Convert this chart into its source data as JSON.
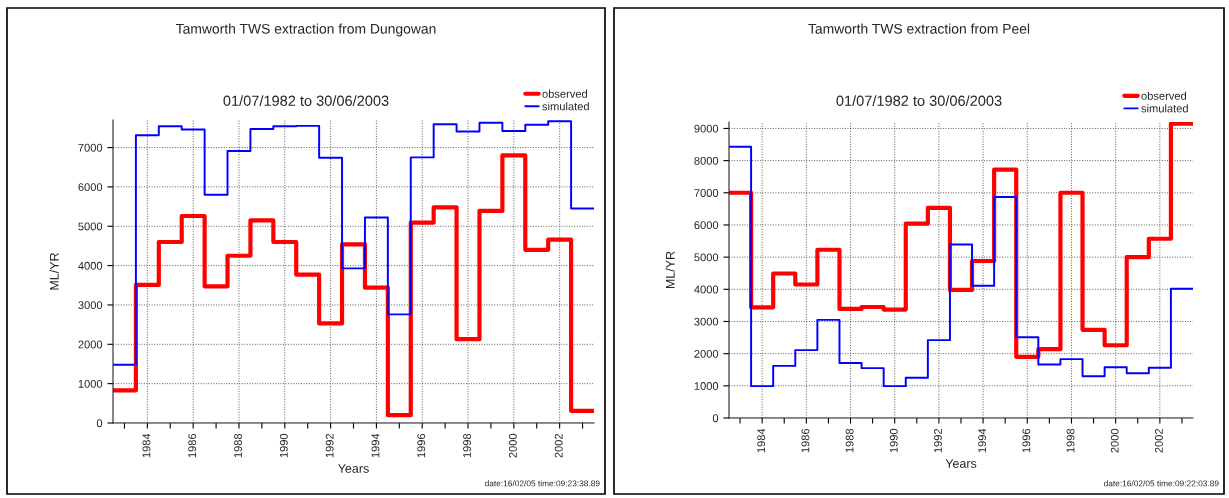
{
  "chart_data": [
    {
      "type": "step",
      "title": "Tamworth TWS extraction from Dungowan",
      "subtitle": "01/07/1982 to 30/06/2003",
      "xlabel": "Years",
      "ylabel": "ML/YR",
      "x": [
        1982.5,
        1983.5,
        1984.5,
        1985.5,
        1986.5,
        1987.5,
        1988.5,
        1989.5,
        1990.5,
        1991.5,
        1992.5,
        1993.5,
        1994.5,
        1995.5,
        1996.5,
        1997.5,
        1998.5,
        1999.5,
        2000.5,
        2001.5,
        2002.5,
        2003.5
      ],
      "series": [
        {
          "name": "observed",
          "color": "#ff0000",
          "values": [
            830,
            3510,
            4600,
            5260,
            3470,
            4250,
            5150,
            4600,
            3770,
            2530,
            4540,
            3440,
            200,
            5090,
            5480,
            2130,
            5390,
            6800,
            4400,
            4660,
            310,
            310
          ]
        },
        {
          "name": "simulated",
          "color": "#0000ff",
          "values": [
            1480,
            7310,
            7540,
            7460,
            5800,
            6910,
            7470,
            7540,
            7550,
            6740,
            3930,
            5220,
            2760,
            6750,
            7590,
            7410,
            7630,
            7420,
            7580,
            7670,
            5450,
            5450
          ]
        }
      ],
      "xlim": [
        1982.5,
        2003.5
      ],
      "xticks": [
        {
          "value": 1983,
          "label": null
        },
        1984,
        {
          "value": 1985,
          "label": null
        },
        1986,
        {
          "value": 1987,
          "label": null
        },
        1988,
        {
          "value": 1989,
          "label": null
        },
        1990,
        {
          "value": 1991,
          "label": null
        },
        1992,
        {
          "value": 1993,
          "label": null
        },
        1994,
        {
          "value": 1995,
          "label": null
        },
        1996,
        {
          "value": 1997,
          "label": null
        },
        1998,
        {
          "value": 1999,
          "label": null
        },
        2000,
        {
          "value": 2001,
          "label": null
        },
        2002,
        {
          "value": 2003,
          "label": null
        }
      ],
      "ylim": [
        0,
        7700
      ],
      "yticks": [
        0,
        1000,
        2000,
        3000,
        4000,
        5000,
        6000,
        7000
      ],
      "grid": true,
      "legend": "top right",
      "annotations": [
        "date:16/02/05 time:09:23:38.89"
      ]
    },
    {
      "type": "step",
      "title": "Tamworth TWS extraction from Peel",
      "subtitle": "01/07/1982 to 30/06/2003",
      "xlabel": "Years",
      "ylabel": "ML/YR",
      "x": [
        1982.5,
        1983.5,
        1984.5,
        1985.5,
        1986.5,
        1987.5,
        1988.5,
        1989.5,
        1990.5,
        1991.5,
        1992.5,
        1993.5,
        1994.5,
        1995.5,
        1996.5,
        1997.5,
        1998.5,
        1999.5,
        2000.5,
        2001.5,
        2002.5,
        2003.5
      ],
      "series": [
        {
          "name": "observed",
          "color": "#ff0000",
          "values": [
            7000,
            3440,
            4490,
            4150,
            5230,
            3390,
            3450,
            3370,
            6040,
            6530,
            3980,
            4880,
            7720,
            1900,
            2140,
            7000,
            2740,
            2260,
            5000,
            5570,
            9150,
            9150
          ]
        },
        {
          "name": "simulated",
          "color": "#0000ff",
          "values": [
            8430,
            990,
            1620,
            2110,
            3050,
            1710,
            1550,
            990,
            1250,
            2420,
            5390,
            4110,
            6870,
            2510,
            1660,
            1830,
            1300,
            1580,
            1390,
            1560,
            4020,
            4020
          ]
        }
      ],
      "xlim": [
        1982.5,
        2003.5
      ],
      "xticks": [
        {
          "value": 1983,
          "label": null
        },
        1984,
        {
          "value": 1985,
          "label": null
        },
        1986,
        {
          "value": 1987,
          "label": null
        },
        1988,
        {
          "value": 1989,
          "label": null
        },
        1990,
        {
          "value": 1991,
          "label": null
        },
        1992,
        {
          "value": 1993,
          "label": null
        },
        1994,
        {
          "value": 1995,
          "label": null
        },
        1996,
        {
          "value": 1997,
          "label": null
        },
        1998,
        {
          "value": 1999,
          "label": null
        },
        2000,
        {
          "value": 2001,
          "label": null
        },
        2002,
        {
          "value": 2003,
          "label": null
        }
      ],
      "ylim": [
        0,
        9200
      ],
      "yticks": [
        0,
        1000,
        2000,
        3000,
        4000,
        5000,
        6000,
        7000,
        8000,
        9000
      ],
      "grid": true,
      "legend": "top right",
      "annotations": [
        "date:16/02/05 time:09:22:03.89"
      ]
    }
  ]
}
